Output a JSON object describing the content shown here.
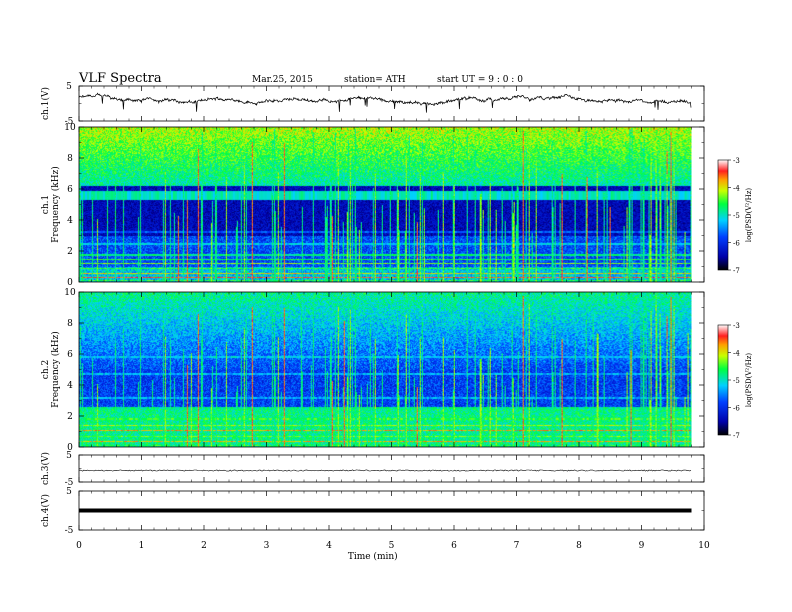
{
  "header": {
    "title": "VLF  Spectra",
    "date": "Mar.25, 2015",
    "station": "station= ATH",
    "start": "start  UT  =   9  : 0  : 0"
  },
  "chart_data": {
    "type": "heatmap",
    "x": {
      "label": "Time  (min)",
      "range": [
        0,
        10
      ],
      "ticks": [
        "0",
        "1",
        "2",
        "3",
        "4",
        "5",
        "6",
        "7",
        "8",
        "9",
        "10"
      ]
    },
    "panels": [
      {
        "kind": "waveform",
        "ylabel": "ch.1(V)",
        "yticks": [
          "5",
          "-5"
        ],
        "ylim": [
          -5,
          5
        ]
      },
      {
        "kind": "spectrogram",
        "ylabel_top": "ch.1",
        "ylabel": "Frequency  (kHz)",
        "yticks": [
          "0",
          "2",
          "4",
          "6",
          "8",
          "10"
        ],
        "ylim": [
          0,
          10
        ],
        "colorbar": {
          "label": "log(PSD(V²/Hz)",
          "ticks": [
            "-3",
            "-4",
            "-5",
            "-6",
            "-7"
          ],
          "range": [
            -7,
            -3
          ]
        }
      },
      {
        "kind": "spectrogram",
        "ylabel_top": "ch.2",
        "ylabel": "Frequency  (kHz)",
        "yticks": [
          "0",
          "2",
          "4",
          "6",
          "8",
          "10"
        ],
        "ylim": [
          0,
          10
        ],
        "colorbar": {
          "label": "log(PSD(V²/Hz)",
          "ticks": [
            "-3",
            "-4",
            "-5",
            "-6",
            "-7"
          ],
          "range": [
            -7,
            -3
          ]
        }
      },
      {
        "kind": "waveform",
        "ylabel": "ch.3(V)",
        "yticks": [
          "5",
          "-5"
        ],
        "ylim": [
          -5,
          5
        ]
      },
      {
        "kind": "waveform",
        "ylabel": "ch.4(V)",
        "yticks": [
          "5",
          "-5"
        ],
        "ylim": [
          -5,
          5
        ]
      }
    ]
  }
}
